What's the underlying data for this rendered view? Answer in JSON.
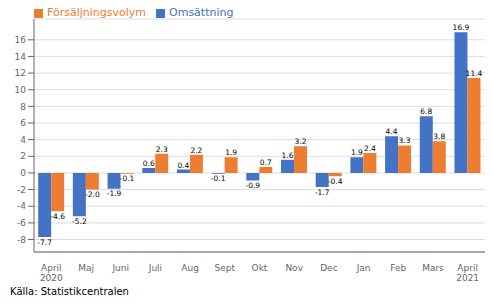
{
  "chart_data": {
    "type": "bar",
    "categories": [
      "April\n2020",
      "Maj",
      "Juni",
      "Juli",
      "Aug",
      "Sept",
      "Okt",
      "Nov",
      "Dec",
      "Jan",
      "Feb",
      "Mars",
      "April\n2021"
    ],
    "series": [
      {
        "name": "Omsättning",
        "color": "#4472c4",
        "values": [
          -7.7,
          -5.2,
          -1.9,
          0.6,
          0.4,
          -0.1,
          -0.9,
          1.6,
          -1.7,
          1.9,
          4.4,
          6.8,
          16.9
        ],
        "value_labels": [
          "-7.7",
          "-5.2",
          "-1.9",
          "0.6",
          "0.4",
          "-0.1",
          "-0.9",
          "1.6",
          "-1.7",
          "1.9",
          "4.4",
          "6.8",
          "16.9"
        ]
      },
      {
        "name": "Försäljningsvolym",
        "color": "#ed7d31",
        "values": [
          -4.6,
          -2.0,
          -0.1,
          2.3,
          2.2,
          1.9,
          0.7,
          3.2,
          -0.4,
          2.4,
          3.3,
          3.8,
          11.4
        ],
        "value_labels": [
          "-4.6",
          "-2.0",
          "-0.1",
          "2.3",
          "2.2",
          "1.9",
          "0.7",
          "3.2",
          "-0.4",
          "2.4",
          "3.3",
          "3.8",
          "11.4"
        ]
      }
    ],
    "ylim": [
      -9.5,
      18.5
    ],
    "yticks": [
      -8,
      -6,
      -4,
      -2,
      0,
      2,
      4,
      6,
      8,
      10,
      12,
      14,
      16
    ],
    "grid": true,
    "legend": "upper left",
    "data_labels": true,
    "annotations": [
      "Källa: Statistikcentralen"
    ]
  }
}
